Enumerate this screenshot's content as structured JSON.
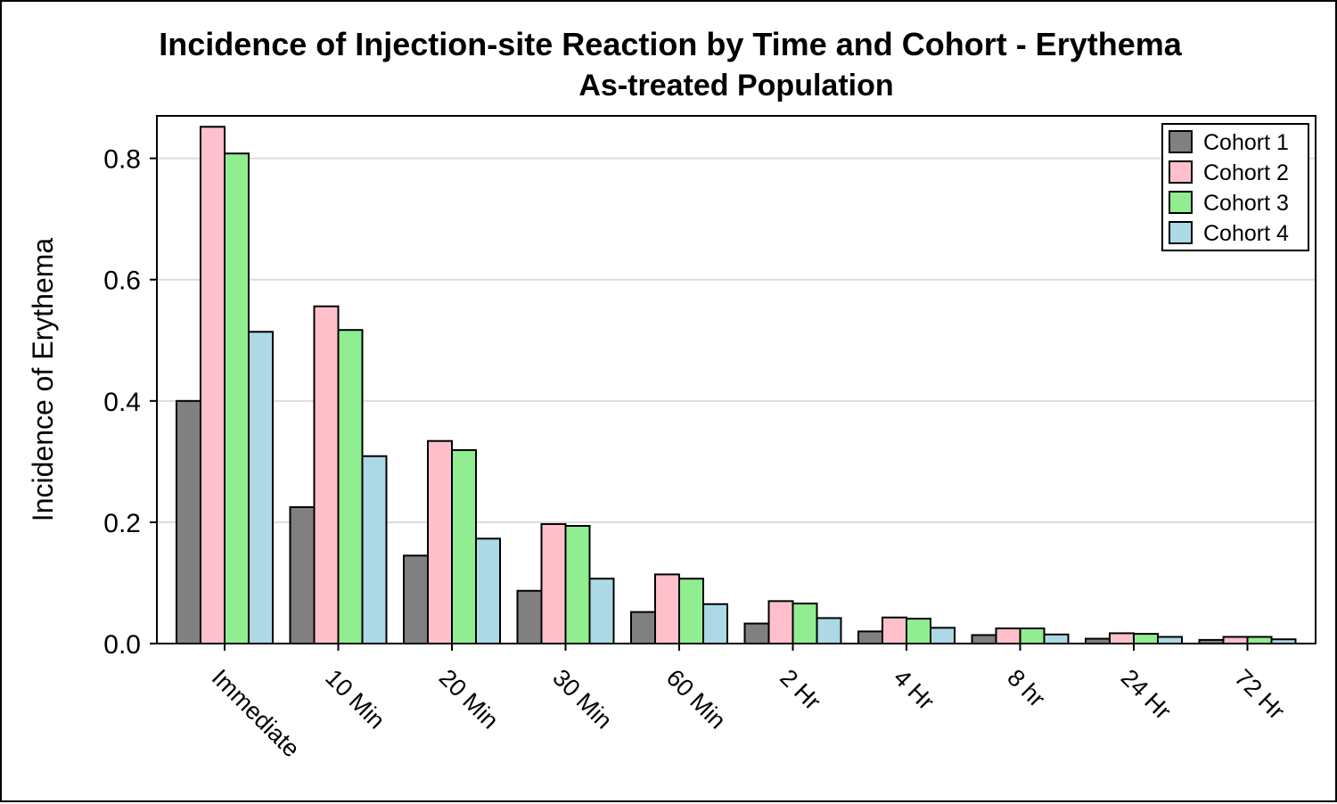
{
  "chart_data": {
    "type": "bar",
    "title": "Incidence of Injection-site Reaction by Time and Cohort - Erythema",
    "subtitle": "As-treated Population",
    "xlabel": "",
    "ylabel": "Incidence of Erythema",
    "categories": [
      "Immediate",
      "10 Min",
      "20 Min",
      "30 Min",
      "60 Min",
      "2 Hr",
      "4 Hr",
      "8 hr",
      "24 Hr",
      "72 Hr"
    ],
    "series": [
      {
        "name": "Cohort 1",
        "color": "#808080",
        "values": [
          0.4,
          0.225,
          0.145,
          0.087,
          0.052,
          0.033,
          0.02,
          0.014,
          0.008,
          0.006
        ]
      },
      {
        "name": "Cohort 2",
        "color": "#ffc0cb",
        "values": [
          0.852,
          0.556,
          0.334,
          0.197,
          0.114,
          0.07,
          0.043,
          0.025,
          0.017,
          0.011
        ]
      },
      {
        "name": "Cohort 3",
        "color": "#90ee90",
        "values": [
          0.808,
          0.517,
          0.319,
          0.194,
          0.107,
          0.066,
          0.041,
          0.025,
          0.016,
          0.011
        ]
      },
      {
        "name": "Cohort 4",
        "color": "#add8e6",
        "values": [
          0.514,
          0.309,
          0.173,
          0.107,
          0.065,
          0.042,
          0.026,
          0.015,
          0.011,
          0.007
        ]
      }
    ],
    "yticks": [
      0.0,
      0.2,
      0.4,
      0.6,
      0.8
    ],
    "ytick_labels": [
      "0.0",
      "0.2",
      "0.4",
      "0.6",
      "0.8"
    ],
    "ylim": [
      0,
      0.87
    ],
    "grid": true,
    "legend_position": "top-right",
    "grid_color": "#dcdcdc",
    "bar_outline_color": "#000000"
  }
}
